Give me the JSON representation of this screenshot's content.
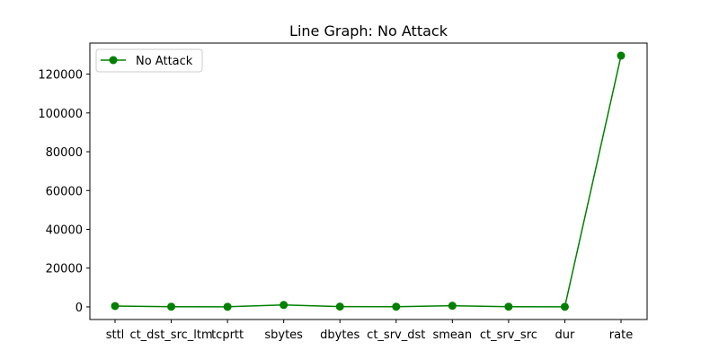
{
  "chart_data": {
    "type": "line",
    "title": "Line Graph: No Attack",
    "xlabel": "",
    "ylabel": "",
    "categories": [
      "sttl",
      "ct_dst_src_ltm",
      "tcprtt",
      "sbytes",
      "dbytes",
      "ct_srv_dst",
      "smean",
      "ct_srv_src",
      "dur",
      "rate"
    ],
    "series": [
      {
        "name": "No Attack",
        "color": "#008000",
        "marker": "circle",
        "values": [
          450,
          100,
          50,
          1000,
          150,
          100,
          600,
          100,
          60,
          129500
        ]
      }
    ],
    "yticks": [
      0,
      20000,
      40000,
      60000,
      80000,
      100000,
      120000
    ],
    "ylim": [
      -6500,
      136000
    ],
    "legend_position": "top-left",
    "grid": false
  }
}
